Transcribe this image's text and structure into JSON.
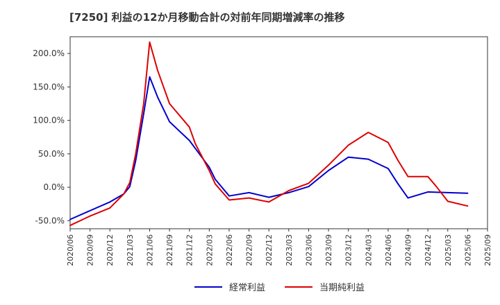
{
  "chart_data": {
    "type": "line",
    "title": "[7250]  利益の12か月移動合計の対前年同期増減率の推移",
    "xlabel": "",
    "ylabel": "",
    "ylim": [
      -62,
      225
    ],
    "yticks": [
      -50,
      0,
      50,
      100,
      150,
      200
    ],
    "ytick_labels": [
      "-50.0%",
      "0.0%",
      "50.0%",
      "100.0%",
      "150.0%",
      "200.0%"
    ],
    "x_tick_labels": [
      "2020/06",
      "2020/09",
      "2020/12",
      "2021/03",
      "2021/06",
      "2021/09",
      "2021/12",
      "2022/03",
      "2022/06",
      "2022/09",
      "2022/12",
      "2023/03",
      "2023/06",
      "2023/09",
      "2023/12",
      "2024/03",
      "2024/06",
      "2024/09",
      "2024/12",
      "2025/03",
      "2025/06",
      "2025/09"
    ],
    "grid": true,
    "series": [
      {
        "name": "経常利益",
        "color": "#0000cc",
        "points": [
          [
            0,
            -48
          ],
          [
            2,
            -22
          ],
          [
            2.7,
            -10
          ],
          [
            3,
            1
          ],
          [
            3.3,
            40
          ],
          [
            3.7,
            110
          ],
          [
            4,
            165
          ],
          [
            4.4,
            135
          ],
          [
            5,
            98
          ],
          [
            6,
            70
          ],
          [
            7,
            30
          ],
          [
            7.3,
            12
          ],
          [
            8,
            -13
          ],
          [
            9,
            -8
          ],
          [
            10,
            -15
          ],
          [
            11,
            -8
          ],
          [
            12,
            1
          ],
          [
            13,
            25
          ],
          [
            14,
            45
          ],
          [
            15,
            42
          ],
          [
            16,
            28
          ],
          [
            16.5,
            5
          ],
          [
            17,
            -16
          ],
          [
            18,
            -7
          ],
          [
            19,
            -8
          ],
          [
            20,
            -9
          ]
        ]
      },
      {
        "name": "当期純利益",
        "color": "#dd0000",
        "points": [
          [
            0,
            -57
          ],
          [
            1,
            -43
          ],
          [
            2,
            -31
          ],
          [
            2.7,
            -10
          ],
          [
            3,
            7
          ],
          [
            3.3,
            50
          ],
          [
            3.7,
            125
          ],
          [
            4,
            217
          ],
          [
            4.4,
            175
          ],
          [
            5,
            125
          ],
          [
            6,
            90
          ],
          [
            6.3,
            65
          ],
          [
            7,
            25
          ],
          [
            7.3,
            5
          ],
          [
            8,
            -19
          ],
          [
            9,
            -16
          ],
          [
            10,
            -22
          ],
          [
            11,
            -5
          ],
          [
            12,
            6
          ],
          [
            13,
            33
          ],
          [
            14,
            63
          ],
          [
            15,
            82
          ],
          [
            16,
            67
          ],
          [
            16.5,
            40
          ],
          [
            17,
            16
          ],
          [
            18,
            16
          ],
          [
            18.4,
            2
          ],
          [
            19,
            -21
          ],
          [
            20,
            -28
          ]
        ]
      }
    ]
  }
}
